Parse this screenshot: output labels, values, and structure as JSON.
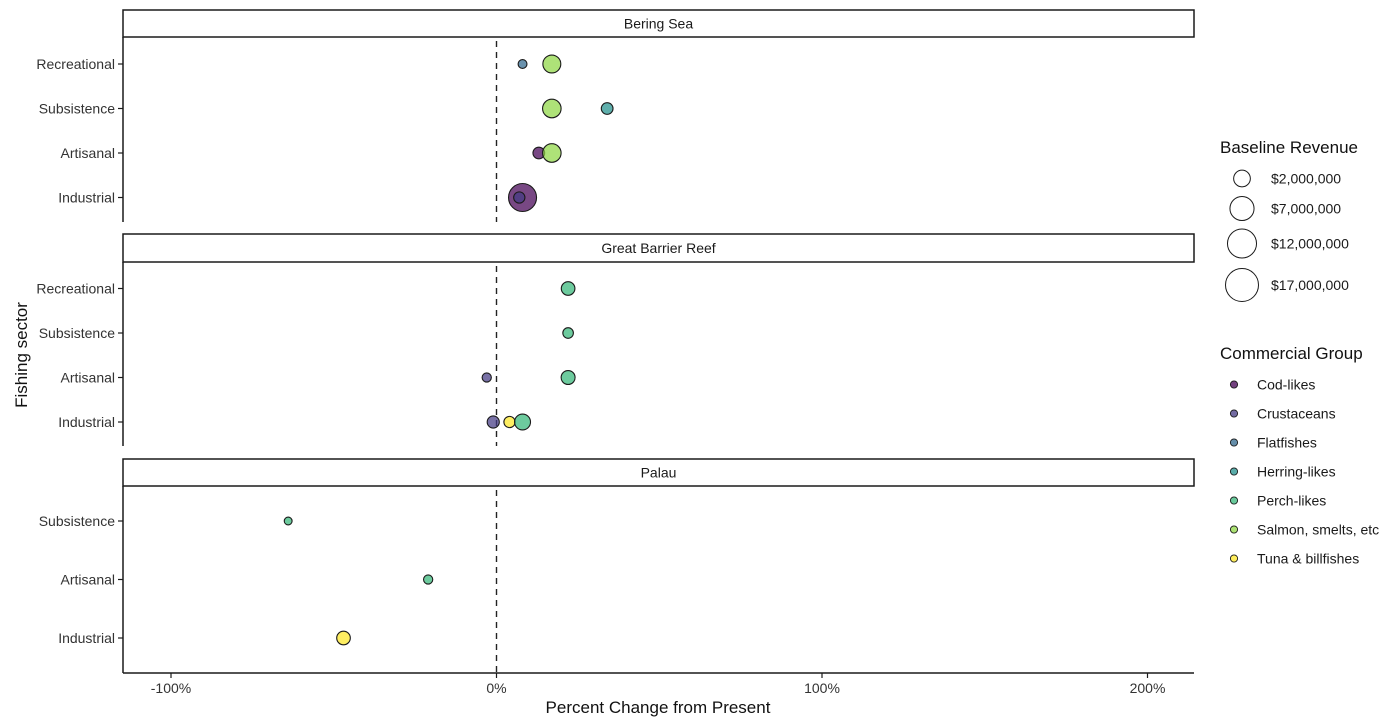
{
  "chart_data": {
    "type": "scatter",
    "xlabel": "Percent Change from Present",
    "ylabel": "Fishing sector",
    "xlim": [
      -115,
      215
    ],
    "x_ticks": [
      {
        "value": -100,
        "label": "-100%"
      },
      {
        "value": 0,
        "label": "0%"
      },
      {
        "value": 100,
        "label": "100%"
      },
      {
        "value": 200,
        "label": "200%"
      }
    ],
    "reference_line": {
      "x": 0,
      "style": "dashed"
    },
    "size_legend": {
      "title": "Baseline Revenue",
      "entries": [
        {
          "value": 2000000,
          "label": "$2,000,000"
        },
        {
          "value": 7000000,
          "label": "$7,000,000"
        },
        {
          "value": 12000000,
          "label": "$12,000,000"
        },
        {
          "value": 17000000,
          "label": "$17,000,000"
        }
      ]
    },
    "color_legend": {
      "title": "Commercial Group",
      "entries": [
        {
          "name": "Cod-likes",
          "color": "#440154"
        },
        {
          "name": "Crustaceans",
          "color": "#443A83"
        },
        {
          "name": "Flatfishes",
          "color": "#31688E"
        },
        {
          "name": "Herring-likes",
          "color": "#21908C"
        },
        {
          "name": "Perch-likes",
          "color": "#35B779"
        },
        {
          "name": "Salmon, smelts, etc",
          "color": "#8FD744"
        },
        {
          "name": "Tuna & billfishes",
          "color": "#FDE725"
        }
      ]
    },
    "panels": [
      {
        "title": "Bering Sea",
        "sectors": [
          "Recreational",
          "Subsistence",
          "Artisanal",
          "Industrial"
        ],
        "points": [
          {
            "sector": "Recreational",
            "group": "Flatfishes",
            "x": 8,
            "revenue": 900000
          },
          {
            "sector": "Recreational",
            "group": "Salmon, smelts, etc",
            "x": 17,
            "revenue": 6000000
          },
          {
            "sector": "Subsistence",
            "group": "Salmon, smelts, etc",
            "x": 17,
            "revenue": 6500000
          },
          {
            "sector": "Subsistence",
            "group": "Herring-likes",
            "x": 34,
            "revenue": 2000000
          },
          {
            "sector": "Artisanal",
            "group": "Cod-likes",
            "x": 13,
            "revenue": 2000000
          },
          {
            "sector": "Artisanal",
            "group": "Salmon, smelts, etc",
            "x": 17,
            "revenue": 6500000
          },
          {
            "sector": "Industrial",
            "group": "Cod-likes",
            "x": 8,
            "revenue": 17000000
          },
          {
            "sector": "Industrial",
            "group": "Crustaceans",
            "x": 7,
            "revenue": 1800000
          }
        ]
      },
      {
        "title": "Great Barrier Reef",
        "sectors": [
          "Recreational",
          "Subsistence",
          "Artisanal",
          "Industrial"
        ],
        "points": [
          {
            "sector": "Recreational",
            "group": "Perch-likes",
            "x": 22,
            "revenue": 3000000
          },
          {
            "sector": "Subsistence",
            "group": "Perch-likes",
            "x": 22,
            "revenue": 1500000
          },
          {
            "sector": "Artisanal",
            "group": "Crustaceans",
            "x": -3,
            "revenue": 1000000
          },
          {
            "sector": "Artisanal",
            "group": "Perch-likes",
            "x": 22,
            "revenue": 3200000
          },
          {
            "sector": "Industrial",
            "group": "Crustaceans",
            "x": -1,
            "revenue": 2200000
          },
          {
            "sector": "Industrial",
            "group": "Tuna & billfishes",
            "x": 4,
            "revenue": 1800000
          },
          {
            "sector": "Industrial",
            "group": "Perch-likes",
            "x": 8,
            "revenue": 4500000
          }
        ]
      },
      {
        "title": "Palau",
        "sectors": [
          "Subsistence",
          "Artisanal",
          "Industrial"
        ],
        "points": [
          {
            "sector": "Subsistence",
            "group": "Perch-likes",
            "x": -64,
            "revenue": 600000
          },
          {
            "sector": "Artisanal",
            "group": "Perch-likes",
            "x": -21,
            "revenue": 1000000
          },
          {
            "sector": "Industrial",
            "group": "Tuna & billfishes",
            "x": -47,
            "revenue": 3000000
          }
        ]
      }
    ]
  }
}
